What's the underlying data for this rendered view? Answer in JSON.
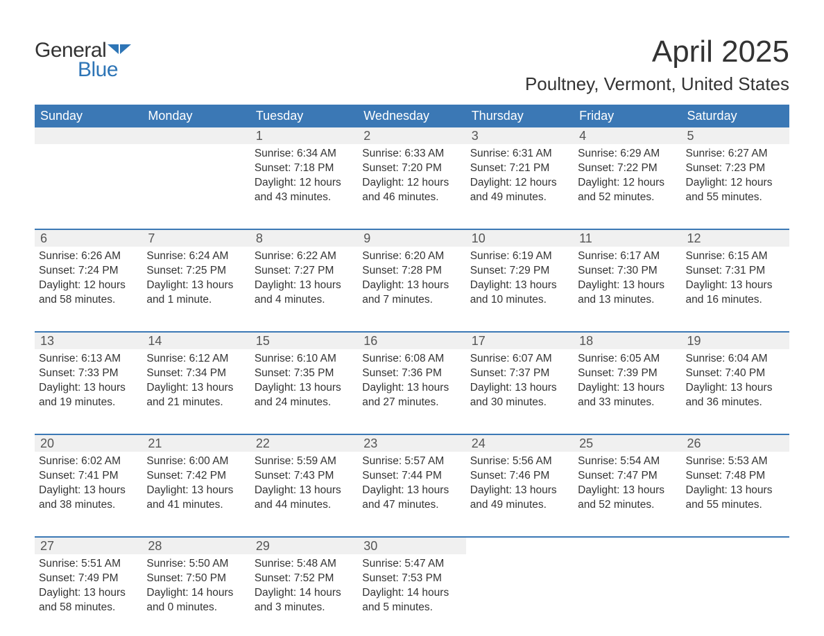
{
  "brand": {
    "word1": "General",
    "word2": "Blue",
    "accent_color": "#2e75b6"
  },
  "title": "April 2025",
  "location": "Poultney, Vermont, United States",
  "colors": {
    "header_bg": "#3b78b5",
    "header_text": "#ffffff",
    "daynum_bg": "#f0f0f0",
    "daynum_text": "#555555",
    "body_text": "#333333",
    "week_border": "#3b78b5",
    "page_bg": "#ffffff"
  },
  "fonts": {
    "title_pt": 44,
    "location_pt": 26,
    "day_header_pt": 18,
    "daynum_pt": 18,
    "body_pt": 15.5
  },
  "day_names": [
    "Sunday",
    "Monday",
    "Tuesday",
    "Wednesday",
    "Thursday",
    "Friday",
    "Saturday"
  ],
  "weeks": [
    [
      {
        "day": "",
        "sunrise": "",
        "sunset": "",
        "daylight": ""
      },
      {
        "day": "",
        "sunrise": "",
        "sunset": "",
        "daylight": ""
      },
      {
        "day": "1",
        "sunrise": "Sunrise: 6:34 AM",
        "sunset": "Sunset: 7:18 PM",
        "daylight": "Daylight: 12 hours and 43 minutes."
      },
      {
        "day": "2",
        "sunrise": "Sunrise: 6:33 AM",
        "sunset": "Sunset: 7:20 PM",
        "daylight": "Daylight: 12 hours and 46 minutes."
      },
      {
        "day": "3",
        "sunrise": "Sunrise: 6:31 AM",
        "sunset": "Sunset: 7:21 PM",
        "daylight": "Daylight: 12 hours and 49 minutes."
      },
      {
        "day": "4",
        "sunrise": "Sunrise: 6:29 AM",
        "sunset": "Sunset: 7:22 PM",
        "daylight": "Daylight: 12 hours and 52 minutes."
      },
      {
        "day": "5",
        "sunrise": "Sunrise: 6:27 AM",
        "sunset": "Sunset: 7:23 PM",
        "daylight": "Daylight: 12 hours and 55 minutes."
      }
    ],
    [
      {
        "day": "6",
        "sunrise": "Sunrise: 6:26 AM",
        "sunset": "Sunset: 7:24 PM",
        "daylight": "Daylight: 12 hours and 58 minutes."
      },
      {
        "day": "7",
        "sunrise": "Sunrise: 6:24 AM",
        "sunset": "Sunset: 7:25 PM",
        "daylight": "Daylight: 13 hours and 1 minute."
      },
      {
        "day": "8",
        "sunrise": "Sunrise: 6:22 AM",
        "sunset": "Sunset: 7:27 PM",
        "daylight": "Daylight: 13 hours and 4 minutes."
      },
      {
        "day": "9",
        "sunrise": "Sunrise: 6:20 AM",
        "sunset": "Sunset: 7:28 PM",
        "daylight": "Daylight: 13 hours and 7 minutes."
      },
      {
        "day": "10",
        "sunrise": "Sunrise: 6:19 AM",
        "sunset": "Sunset: 7:29 PM",
        "daylight": "Daylight: 13 hours and 10 minutes."
      },
      {
        "day": "11",
        "sunrise": "Sunrise: 6:17 AM",
        "sunset": "Sunset: 7:30 PM",
        "daylight": "Daylight: 13 hours and 13 minutes."
      },
      {
        "day": "12",
        "sunrise": "Sunrise: 6:15 AM",
        "sunset": "Sunset: 7:31 PM",
        "daylight": "Daylight: 13 hours and 16 minutes."
      }
    ],
    [
      {
        "day": "13",
        "sunrise": "Sunrise: 6:13 AM",
        "sunset": "Sunset: 7:33 PM",
        "daylight": "Daylight: 13 hours and 19 minutes."
      },
      {
        "day": "14",
        "sunrise": "Sunrise: 6:12 AM",
        "sunset": "Sunset: 7:34 PM",
        "daylight": "Daylight: 13 hours and 21 minutes."
      },
      {
        "day": "15",
        "sunrise": "Sunrise: 6:10 AM",
        "sunset": "Sunset: 7:35 PM",
        "daylight": "Daylight: 13 hours and 24 minutes."
      },
      {
        "day": "16",
        "sunrise": "Sunrise: 6:08 AM",
        "sunset": "Sunset: 7:36 PM",
        "daylight": "Daylight: 13 hours and 27 minutes."
      },
      {
        "day": "17",
        "sunrise": "Sunrise: 6:07 AM",
        "sunset": "Sunset: 7:37 PM",
        "daylight": "Daylight: 13 hours and 30 minutes."
      },
      {
        "day": "18",
        "sunrise": "Sunrise: 6:05 AM",
        "sunset": "Sunset: 7:39 PM",
        "daylight": "Daylight: 13 hours and 33 minutes."
      },
      {
        "day": "19",
        "sunrise": "Sunrise: 6:04 AM",
        "sunset": "Sunset: 7:40 PM",
        "daylight": "Daylight: 13 hours and 36 minutes."
      }
    ],
    [
      {
        "day": "20",
        "sunrise": "Sunrise: 6:02 AM",
        "sunset": "Sunset: 7:41 PM",
        "daylight": "Daylight: 13 hours and 38 minutes."
      },
      {
        "day": "21",
        "sunrise": "Sunrise: 6:00 AM",
        "sunset": "Sunset: 7:42 PM",
        "daylight": "Daylight: 13 hours and 41 minutes."
      },
      {
        "day": "22",
        "sunrise": "Sunrise: 5:59 AM",
        "sunset": "Sunset: 7:43 PM",
        "daylight": "Daylight: 13 hours and 44 minutes."
      },
      {
        "day": "23",
        "sunrise": "Sunrise: 5:57 AM",
        "sunset": "Sunset: 7:44 PM",
        "daylight": "Daylight: 13 hours and 47 minutes."
      },
      {
        "day": "24",
        "sunrise": "Sunrise: 5:56 AM",
        "sunset": "Sunset: 7:46 PM",
        "daylight": "Daylight: 13 hours and 49 minutes."
      },
      {
        "day": "25",
        "sunrise": "Sunrise: 5:54 AM",
        "sunset": "Sunset: 7:47 PM",
        "daylight": "Daylight: 13 hours and 52 minutes."
      },
      {
        "day": "26",
        "sunrise": "Sunrise: 5:53 AM",
        "sunset": "Sunset: 7:48 PM",
        "daylight": "Daylight: 13 hours and 55 minutes."
      }
    ],
    [
      {
        "day": "27",
        "sunrise": "Sunrise: 5:51 AM",
        "sunset": "Sunset: 7:49 PM",
        "daylight": "Daylight: 13 hours and 58 minutes."
      },
      {
        "day": "28",
        "sunrise": "Sunrise: 5:50 AM",
        "sunset": "Sunset: 7:50 PM",
        "daylight": "Daylight: 14 hours and 0 minutes."
      },
      {
        "day": "29",
        "sunrise": "Sunrise: 5:48 AM",
        "sunset": "Sunset: 7:52 PM",
        "daylight": "Daylight: 14 hours and 3 minutes."
      },
      {
        "day": "30",
        "sunrise": "Sunrise: 5:47 AM",
        "sunset": "Sunset: 7:53 PM",
        "daylight": "Daylight: 14 hours and 5 minutes."
      },
      {
        "day": "",
        "sunrise": "",
        "sunset": "",
        "daylight": ""
      },
      {
        "day": "",
        "sunrise": "",
        "sunset": "",
        "daylight": ""
      },
      {
        "day": "",
        "sunrise": "",
        "sunset": "",
        "daylight": ""
      }
    ]
  ]
}
